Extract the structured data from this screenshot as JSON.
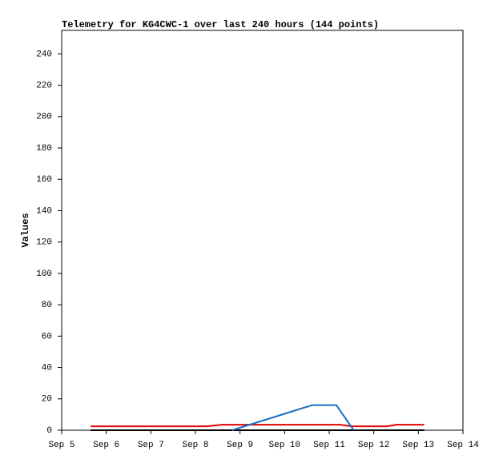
{
  "chart_data": {
    "type": "line",
    "title": "Telemetry for KG4CWC-1 over last 240 hours (144 points)",
    "y_label": "Values",
    "xlim": [
      5,
      14
    ],
    "xticks": [
      {
        "value": 5,
        "label": "Sep 5"
      },
      {
        "value": 6,
        "label": "Sep 6"
      },
      {
        "value": 7,
        "label": "Sep 7"
      },
      {
        "value": 8,
        "label": "Sep 8"
      },
      {
        "value": 9,
        "label": "Sep 9"
      },
      {
        "value": 10,
        "label": "Sep 10"
      },
      {
        "value": 11,
        "label": "Sep 11"
      },
      {
        "value": 12,
        "label": "Sep 12"
      },
      {
        "value": 13,
        "label": "Sep 13"
      },
      {
        "value": 14,
        "label": "Sep 14"
      }
    ],
    "ylim": [
      0,
      255
    ],
    "yticks": [
      0,
      20,
      40,
      60,
      80,
      100,
      120,
      140,
      160,
      180,
      200,
      220,
      240
    ],
    "series": [
      {
        "color": "#000000",
        "x": [
          5.65,
          13.13
        ],
        "values": [
          0,
          0
        ]
      },
      {
        "color": "#e00000",
        "x": [
          5.65,
          8.25,
          8.6,
          11.25,
          11.5,
          12.3,
          12.5,
          13.13
        ],
        "values": [
          2.5,
          2.5,
          3.5,
          3.5,
          2.5,
          2.5,
          3.5,
          3.5
        ]
      },
      {
        "color": "#1a6fc0",
        "x": [
          8.82,
          10.62,
          11.16,
          11.55
        ],
        "values": [
          0,
          16,
          16,
          0
        ]
      }
    ]
  }
}
